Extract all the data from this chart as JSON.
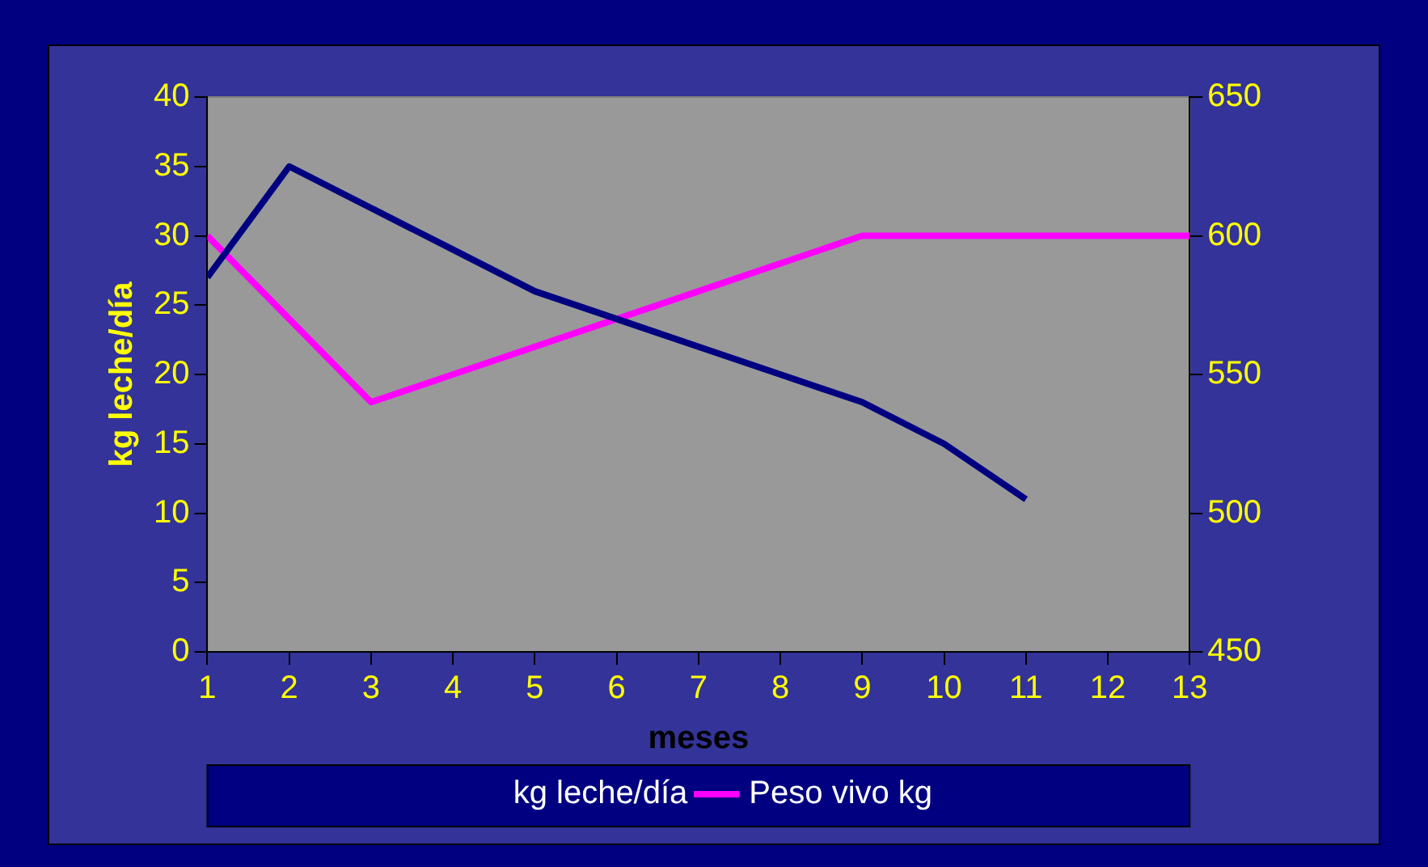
{
  "chart_data": {
    "type": "line",
    "xlabel": "meses",
    "ylabel": "kg leche/día",
    "x": [
      1,
      2,
      3,
      4,
      5,
      6,
      7,
      8,
      9,
      10,
      11,
      12,
      13
    ],
    "series": [
      {
        "name": "kg leche/día",
        "color": "#000080",
        "values": [
          27,
          35,
          32,
          29,
          26,
          24,
          22,
          20,
          18,
          15,
          11,
          null,
          null
        ]
      },
      {
        "name": "Peso vivo kg",
        "color": "#ff00ff",
        "axis": "y2",
        "values": [
          600,
          570,
          540,
          550,
          560,
          570,
          580,
          590,
          600,
          600,
          600,
          600,
          600
        ]
      }
    ],
    "xlim": [
      1,
      13
    ],
    "xticks": [
      1,
      2,
      3,
      4,
      5,
      6,
      7,
      8,
      9,
      10,
      11,
      12,
      13
    ],
    "ylim": [
      0,
      40
    ],
    "yticks": [
      0,
      5,
      10,
      15,
      20,
      25,
      30,
      35,
      40
    ],
    "y2lim": [
      450,
      650
    ],
    "y2ticks": [
      450,
      500,
      550,
      600,
      650
    ],
    "grid": false,
    "legend": "bottom",
    "marker": "none",
    "line_style": "solid"
  }
}
